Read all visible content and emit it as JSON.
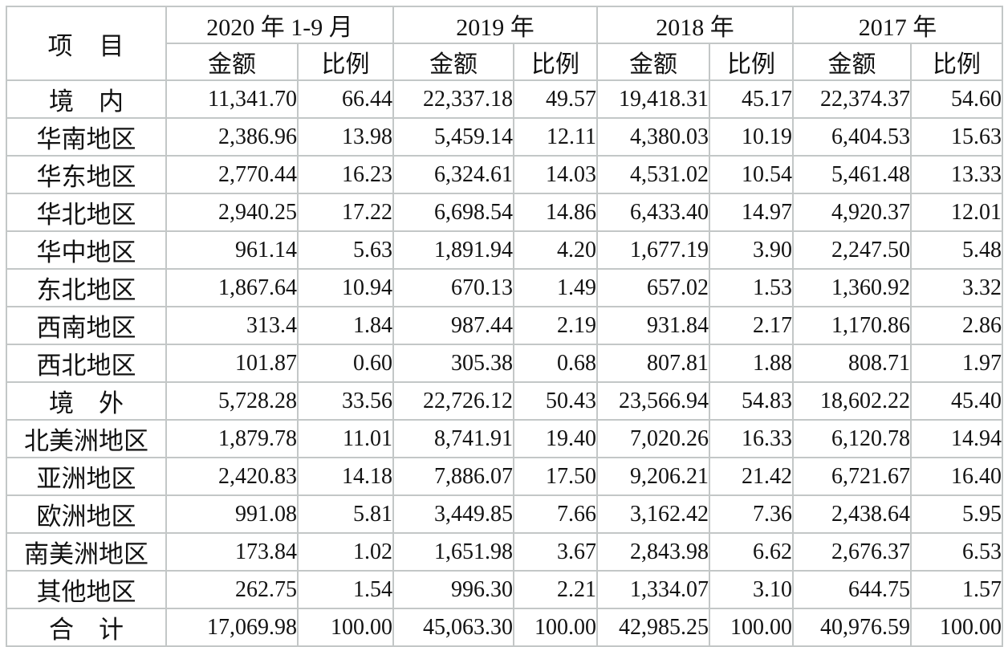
{
  "table": {
    "item_label": "项　目",
    "periods": [
      {
        "label": "2020 年 1-9 月"
      },
      {
        "label": "2019 年"
      },
      {
        "label": "2018 年"
      },
      {
        "label": "2017 年"
      }
    ],
    "amount_label": "金额",
    "ratio_label": "比例",
    "rows": [
      {
        "label": "境　内",
        "values": [
          "11,341.70",
          "66.44",
          "22,337.18",
          "49.57",
          "19,418.31",
          "45.17",
          "22,374.37",
          "54.60"
        ]
      },
      {
        "label": "华南地区",
        "values": [
          "2,386.96",
          "13.98",
          "5,459.14",
          "12.11",
          "4,380.03",
          "10.19",
          "6,404.53",
          "15.63"
        ]
      },
      {
        "label": "华东地区",
        "values": [
          "2,770.44",
          "16.23",
          "6,324.61",
          "14.03",
          "4,531.02",
          "10.54",
          "5,461.48",
          "13.33"
        ]
      },
      {
        "label": "华北地区",
        "values": [
          "2,940.25",
          "17.22",
          "6,698.54",
          "14.86",
          "6,433.40",
          "14.97",
          "4,920.37",
          "12.01"
        ]
      },
      {
        "label": "华中地区",
        "values": [
          "961.14",
          "5.63",
          "1,891.94",
          "4.20",
          "1,677.19",
          "3.90",
          "2,247.50",
          "5.48"
        ]
      },
      {
        "label": "东北地区",
        "values": [
          "1,867.64",
          "10.94",
          "670.13",
          "1.49",
          "657.02",
          "1.53",
          "1,360.92",
          "3.32"
        ]
      },
      {
        "label": "西南地区",
        "values": [
          "313.4",
          "1.84",
          "987.44",
          "2.19",
          "931.84",
          "2.17",
          "1,170.86",
          "2.86"
        ]
      },
      {
        "label": "西北地区",
        "values": [
          "101.87",
          "0.60",
          "305.38",
          "0.68",
          "807.81",
          "1.88",
          "808.71",
          "1.97"
        ]
      },
      {
        "label": "境　外",
        "values": [
          "5,728.28",
          "33.56",
          "22,726.12",
          "50.43",
          "23,566.94",
          "54.83",
          "18,602.22",
          "45.40"
        ]
      },
      {
        "label": "北美洲地区",
        "values": [
          "1,879.78",
          "11.01",
          "8,741.91",
          "19.40",
          "7,020.26",
          "16.33",
          "6,120.78",
          "14.94"
        ]
      },
      {
        "label": "亚洲地区",
        "values": [
          "2,420.83",
          "14.18",
          "7,886.07",
          "17.50",
          "9,206.21",
          "21.42",
          "6,721.67",
          "16.40"
        ]
      },
      {
        "label": "欧洲地区",
        "values": [
          "991.08",
          "5.81",
          "3,449.85",
          "7.66",
          "3,162.42",
          "7.36",
          "2,438.64",
          "5.95"
        ]
      },
      {
        "label": "南美洲地区",
        "values": [
          "173.84",
          "1.02",
          "1,651.98",
          "3.67",
          "2,843.98",
          "6.62",
          "2,676.37",
          "6.53"
        ]
      },
      {
        "label": "其他地区",
        "values": [
          "262.75",
          "1.54",
          "996.30",
          "2.21",
          "1,334.07",
          "3.10",
          "644.75",
          "1.57"
        ]
      },
      {
        "label": "合　计",
        "values": [
          "17,069.98",
          "100.00",
          "45,063.30",
          "100.00",
          "42,985.25",
          "100.00",
          "40,976.59",
          "100.00"
        ]
      }
    ]
  }
}
